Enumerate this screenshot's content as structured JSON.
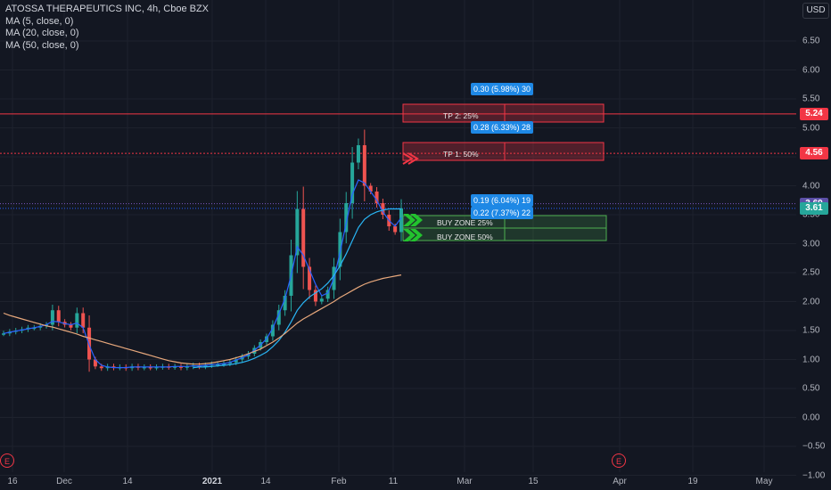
{
  "header": {
    "symbol_title": "ATOSSA THERAPEUTICS INC, 4h, Cboe BZX",
    "indicators": [
      "MA (5, close, 0)",
      "MA (20, close, 0)",
      "MA (50, close, 0)"
    ],
    "currency": "USD"
  },
  "price_axis": {
    "ticks": [
      "6.50",
      "6.00",
      "5.50",
      "5.00",
      "4.50",
      "4.00",
      "3.50",
      "3.00",
      "2.50",
      "2.00",
      "1.50",
      "1.00",
      "0.50",
      "0.00",
      "−0.50",
      "−1.00"
    ],
    "tags": [
      {
        "label": "5.24",
        "color": "#f23645"
      },
      {
        "label": "4.56",
        "color": "#f23645"
      },
      {
        "label": "3.69",
        "color": "#5b4fa6"
      },
      {
        "label": "3.61",
        "color": "#26a69a"
      }
    ]
  },
  "time_axis": {
    "ticks": [
      {
        "label": "16",
        "bold": false
      },
      {
        "label": "Dec",
        "bold": false
      },
      {
        "label": "14",
        "bold": false
      },
      {
        "label": "2021",
        "bold": true
      },
      {
        "label": "14",
        "bold": false
      },
      {
        "label": "Feb",
        "bold": false
      },
      {
        "label": "11",
        "bold": false
      },
      {
        "label": "Mar",
        "bold": false
      },
      {
        "label": "15",
        "bold": false
      },
      {
        "label": "Apr",
        "bold": false
      },
      {
        "label": "19",
        "bold": false
      },
      {
        "label": "May",
        "bold": false
      }
    ]
  },
  "drawings": {
    "tp2_label": "TP 2: 25%",
    "tp1_label": "TP 1: 50%",
    "buy_zone_25_label": "BUY ZONE 25%",
    "buy_zone_50_label": "BUY ZONE 50%",
    "stat_tp2": "0.30 (5.98%) 30",
    "stat_tp1": "0.28 (6.33%) 28",
    "stat_bz25": "0.19 (6.04%) 19",
    "stat_bz50": "0.22 (7.37%) 22"
  },
  "events": [
    "E",
    "E"
  ],
  "colors": {
    "background": "#131722",
    "grid": "#1e222d",
    "up": "#26a69a",
    "down": "#ef5350",
    "ma5": "#2962ff",
    "ma20": "#29b6f6",
    "ma50": "#e8a87c",
    "tp": "#f23645",
    "buy_zone": "#4caf50",
    "arrow_buy": "#22c32e"
  },
  "chart_data": {
    "type": "candlestick",
    "title": "ATOSSA THERAPEUTICS INC, 4h, Cboe BZX",
    "ylim": [
      -1.0,
      6.75
    ],
    "x_labels": [
      "16",
      "Dec",
      "14",
      "2021",
      "14",
      "Feb",
      "11",
      "Mar",
      "15",
      "Apr",
      "19",
      "May"
    ],
    "horizontal_levels": {
      "tp2": 5.24,
      "tp1": 4.56,
      "last": 3.69,
      "prev": 3.61
    },
    "series": [
      {
        "name": "price",
        "values": [
          1.45,
          1.48,
          1.5,
          1.52,
          1.55,
          1.55,
          1.58,
          1.6,
          1.85,
          1.65,
          1.6,
          1.55,
          1.8,
          1.55,
          1.0,
          0.88,
          0.85,
          0.88,
          0.86,
          0.87,
          0.85,
          0.88,
          0.86,
          0.87,
          0.86,
          0.87,
          0.88,
          0.87,
          0.88,
          0.86,
          0.88,
          0.9,
          0.88,
          0.9,
          0.92,
          0.92,
          0.93,
          0.95,
          1.0,
          1.05,
          1.1,
          1.2,
          1.3,
          1.4,
          1.6,
          1.85,
          2.1,
          2.8,
          3.6,
          2.6,
          2.2,
          2.0,
          2.05,
          2.2,
          2.6,
          3.2,
          3.7,
          4.4,
          4.7,
          4.0,
          3.9,
          3.7,
          3.5,
          3.3,
          3.2,
          3.61
        ]
      },
      {
        "name": "MA (5, close, 0)",
        "values": [
          1.45,
          1.47,
          1.49,
          1.51,
          1.53,
          1.55,
          1.57,
          1.6,
          1.66,
          1.65,
          1.62,
          1.6,
          1.63,
          1.55,
          1.25,
          1.0,
          0.9,
          0.87,
          0.86,
          0.86,
          0.86,
          0.87,
          0.87,
          0.87,
          0.87,
          0.87,
          0.87,
          0.87,
          0.88,
          0.88,
          0.88,
          0.89,
          0.89,
          0.9,
          0.91,
          0.92,
          0.93,
          0.95,
          0.99,
          1.03,
          1.08,
          1.16,
          1.25,
          1.36,
          1.54,
          1.79,
          2.05,
          2.45,
          2.95,
          2.8,
          2.55,
          2.3,
          2.1,
          2.15,
          2.4,
          2.85,
          3.35,
          3.85,
          4.1,
          4.05,
          3.9,
          3.75,
          3.55,
          3.4,
          3.3,
          3.45
        ]
      },
      {
        "name": "MA (20, close, 0)",
        "values": [
          null,
          null,
          null,
          null,
          null,
          null,
          null,
          null,
          null,
          null,
          null,
          null,
          null,
          null,
          null,
          null,
          null,
          null,
          null,
          null,
          null,
          null,
          null,
          null,
          null,
          null,
          null,
          null,
          null,
          null,
          null,
          0.86,
          0.87,
          0.87,
          0.88,
          0.89,
          0.9,
          0.91,
          0.93,
          0.95,
          0.98,
          1.02,
          1.07,
          1.13,
          1.22,
          1.33,
          1.47,
          1.65,
          1.85,
          1.98,
          2.08,
          2.15,
          2.22,
          2.32,
          2.45,
          2.62,
          2.82,
          3.05,
          3.28,
          3.42,
          3.5,
          3.55,
          3.58,
          3.6,
          3.6,
          3.6
        ]
      },
      {
        "name": "MA (50, close, 0)",
        "values": [
          1.8,
          1.76,
          1.73,
          1.7,
          1.67,
          1.64,
          1.61,
          1.58,
          1.56,
          1.53,
          1.5,
          1.47,
          1.44,
          1.4,
          1.37,
          1.34,
          1.31,
          1.28,
          1.25,
          1.22,
          1.19,
          1.16,
          1.13,
          1.1,
          1.07,
          1.04,
          1.01,
          0.98,
          0.96,
          0.94,
          0.93,
          0.92,
          0.92,
          0.93,
          0.94,
          0.96,
          0.98,
          1.0,
          1.03,
          1.06,
          1.1,
          1.14,
          1.18,
          1.24,
          1.3,
          1.37,
          1.45,
          1.54,
          1.63,
          1.7,
          1.76,
          1.82,
          1.88,
          1.94,
          2.0,
          2.07,
          2.13,
          2.19,
          2.25,
          2.3,
          2.34,
          2.37,
          2.4,
          2.42,
          2.44,
          2.46
        ]
      }
    ]
  }
}
